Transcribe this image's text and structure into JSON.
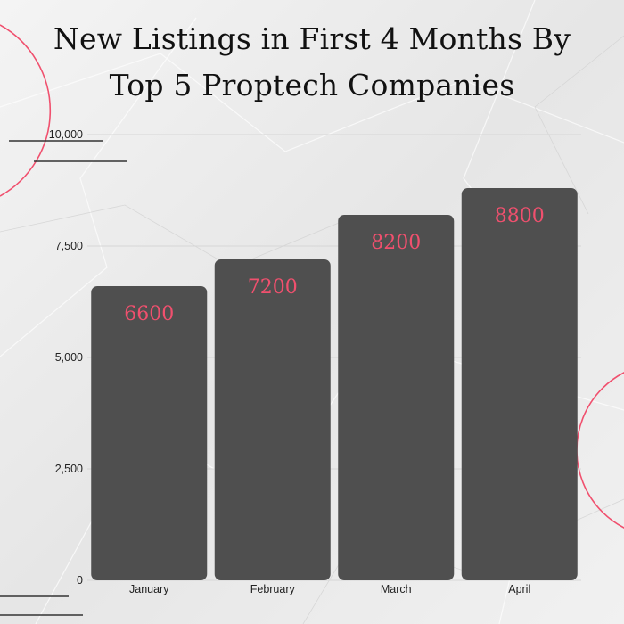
{
  "colors": {
    "bar": "#4f4f4f",
    "data_label": "#f0506e",
    "accent_circle": "#f0506e",
    "grid": "#d6d6d6",
    "background": "#ececec",
    "text": "#111111"
  },
  "chart_data": {
    "type": "bar",
    "title_lines": [
      "New Listings in First 4 Months By",
      "Top 5 Proptech Companies"
    ],
    "categories": [
      "January",
      "February",
      "March",
      "April"
    ],
    "values": [
      6600,
      7200,
      8200,
      8800
    ],
    "data_labels": [
      "6600",
      "7200",
      "8200",
      "8800"
    ],
    "yticks": [
      0,
      2500,
      5000,
      7500,
      10000
    ],
    "ytick_labels": [
      "0",
      "2,500",
      "5,000",
      "7,500",
      "10,000"
    ],
    "ylim": [
      0,
      10000
    ],
    "grid": true,
    "legend": "none"
  }
}
